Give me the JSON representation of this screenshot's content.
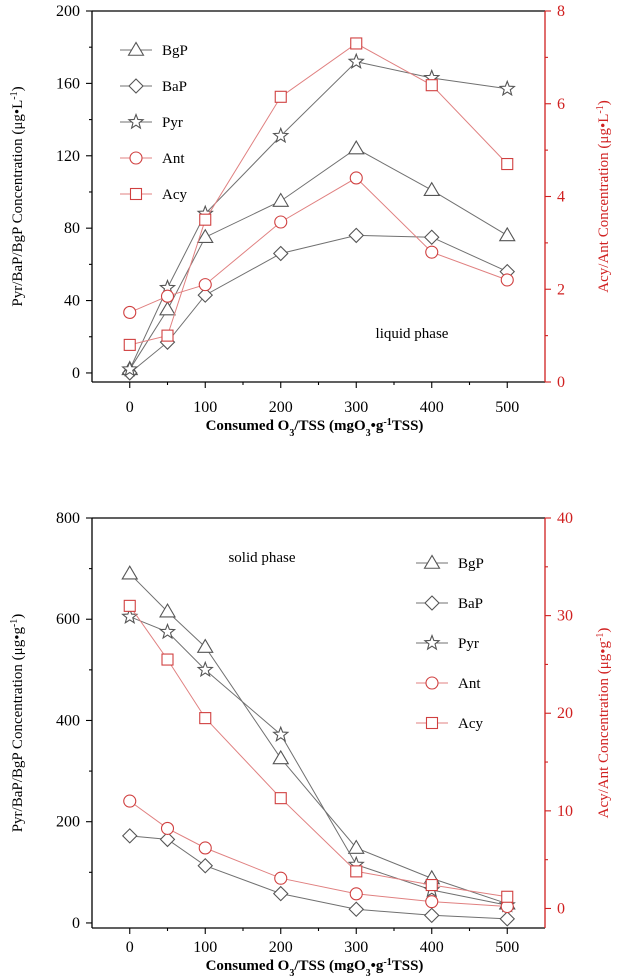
{
  "chart_data": [
    {
      "type": "line",
      "annotation": "liquid phase",
      "xlabel": "Consumed O",
      "xlabel_sub1": "3",
      "xlabel_mid": "/TSS (mgO",
      "xlabel_sub2": "3",
      "xlabel_mid2": "•g",
      "xlabel_sup": "-1",
      "xlabel_end": "TSS)",
      "ylabel": "Pyr/BaP/BgP Concentration (μg•L",
      "ylabel_sup": "-1",
      "ylabel_end": ")",
      "ylabel_right": "Acy/Ant Concentration (μg•L",
      "ylabel_right_sup": "-1",
      "ylabel_right_end": ")",
      "xlim": [
        -50,
        550
      ],
      "ylim": [
        -5,
        200
      ],
      "ylim_right": [
        0,
        8
      ],
      "x_ticks": [
        0,
        100,
        200,
        300,
        400,
        500
      ],
      "x_tick_labels": [
        "0",
        "100",
        "200",
        "300",
        "400",
        "500"
      ],
      "y_ticks": [
        0,
        40,
        80,
        120,
        160,
        200
      ],
      "y_tick_labels": [
        "0",
        "40",
        "80",
        "120",
        "160",
        "200"
      ],
      "y_right_ticks": [
        0,
        2,
        4,
        6,
        8
      ],
      "y_right_tick_labels": [
        "0",
        "2",
        "4",
        "6",
        "8"
      ],
      "legend_position": "top-left",
      "series": [
        {
          "name": "BgP",
          "marker": "triangle",
          "color": "#555555",
          "axis": "left",
          "x": [
            0,
            50,
            100,
            200,
            300,
            400,
            500
          ],
          "y": [
            2,
            35,
            75,
            95,
            124,
            101,
            76
          ]
        },
        {
          "name": "BaP",
          "marker": "diamond",
          "color": "#555555",
          "axis": "left",
          "x": [
            0,
            50,
            100,
            200,
            300,
            400,
            500
          ],
          "y": [
            0,
            17,
            43,
            66,
            76,
            75,
            56
          ]
        },
        {
          "name": "Pyr",
          "marker": "star",
          "color": "#555555",
          "axis": "left",
          "x": [
            0,
            50,
            100,
            200,
            300,
            400,
            500
          ],
          "y": [
            2,
            47,
            88,
            131,
            172,
            163,
            157
          ]
        },
        {
          "name": "Ant",
          "marker": "circle",
          "color": "#d04040",
          "axis": "right",
          "x": [
            0,
            50,
            100,
            200,
            300,
            400,
            500
          ],
          "y": [
            1.5,
            1.85,
            2.1,
            3.45,
            4.4,
            2.8,
            2.2
          ]
        },
        {
          "name": "Acy",
          "marker": "square",
          "color": "#d04040",
          "axis": "right",
          "x": [
            0,
            50,
            100,
            200,
            300,
            400,
            500
          ],
          "y": [
            0.8,
            1.0,
            3.5,
            6.15,
            7.3,
            6.4,
            4.7
          ]
        }
      ]
    },
    {
      "type": "line",
      "annotation": "solid phase",
      "xlabel": "Consumed O",
      "xlabel_sub1": "3",
      "xlabel_mid": "/TSS (mgO",
      "xlabel_sub2": "3",
      "xlabel_mid2": "•g",
      "xlabel_sup": "-1",
      "xlabel_end": "TSS)",
      "ylabel": "Pyr/BaP/BgP Concentration (μg•g",
      "ylabel_sup": "-1",
      "ylabel_end": ")",
      "ylabel_right": "Acy/Ant Concentration (μg•g",
      "ylabel_right_sup": "-1",
      "ylabel_right_end": ")",
      "xlim": [
        -50,
        550
      ],
      "ylim": [
        -10,
        800
      ],
      "ylim_right": [
        -2,
        40
      ],
      "x_ticks": [
        0,
        100,
        200,
        300,
        400,
        500
      ],
      "x_tick_labels": [
        "0",
        "100",
        "200",
        "300",
        "400",
        "500"
      ],
      "y_ticks": [
        0,
        200,
        400,
        600,
        800
      ],
      "y_tick_labels": [
        "0",
        "200",
        "400",
        "600",
        "800"
      ],
      "y_right_ticks": [
        0,
        10,
        20,
        30,
        40
      ],
      "y_right_tick_labels": [
        "0",
        "10",
        "20",
        "30",
        "40"
      ],
      "legend_position": "top-right",
      "series": [
        {
          "name": "BgP",
          "marker": "triangle",
          "color": "#555555",
          "axis": "left",
          "x": [
            0,
            50,
            100,
            200,
            300,
            400,
            500
          ],
          "y": [
            690,
            615,
            545,
            325,
            148,
            88,
            38
          ]
        },
        {
          "name": "BaP",
          "marker": "diamond",
          "color": "#555555",
          "axis": "left",
          "x": [
            0,
            50,
            100,
            200,
            300,
            400,
            500
          ],
          "y": [
            172,
            165,
            113,
            58,
            27,
            15,
            8
          ]
        },
        {
          "name": "Pyr",
          "marker": "star",
          "color": "#555555",
          "axis": "left",
          "x": [
            0,
            50,
            100,
            200,
            300,
            400,
            500
          ],
          "y": [
            605,
            575,
            500,
            372,
            115,
            65,
            35
          ]
        },
        {
          "name": "Ant",
          "marker": "circle",
          "color": "#d04040",
          "axis": "right",
          "x": [
            0,
            50,
            100,
            200,
            300,
            400,
            500
          ],
          "y": [
            11,
            8.2,
            6.2,
            3.1,
            1.5,
            0.7,
            0.2
          ]
        },
        {
          "name": "Acy",
          "marker": "square",
          "color": "#d04040",
          "axis": "right",
          "x": [
            0,
            50,
            100,
            200,
            300,
            400,
            500
          ],
          "y": [
            31,
            25.5,
            19.5,
            11.3,
            3.8,
            2.4,
            1.2
          ]
        }
      ]
    }
  ]
}
